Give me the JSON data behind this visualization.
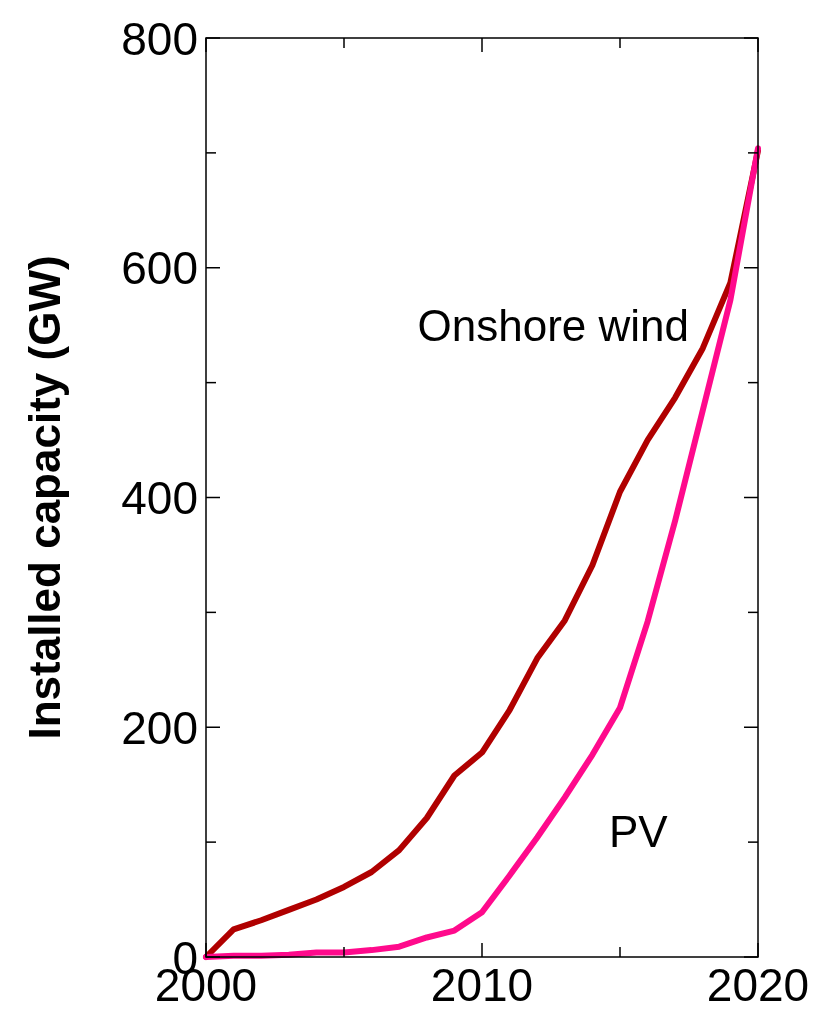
{
  "chart_data": {
    "type": "line",
    "ylabel": "Installed capacity (GW)",
    "x": [
      2000,
      2001,
      2002,
      2003,
      2004,
      2005,
      2006,
      2007,
      2008,
      2009,
      2010,
      2011,
      2012,
      2013,
      2014,
      2015,
      2016,
      2017,
      2018,
      2019,
      2020
    ],
    "series": [
      {
        "name": "Onshore wind",
        "color": "#b00000",
        "values": [
          0,
          24,
          32,
          41,
          50,
          61,
          74,
          93,
          121,
          158,
          178,
          215,
          260,
          293,
          341,
          405,
          450,
          487,
          530,
          587,
          702
        ]
      },
      {
        "name": "PV",
        "color": "#ff0a8c",
        "values": [
          0,
          1,
          1,
          2,
          4,
          4,
          6,
          9,
          17,
          23,
          39,
          71,
          104,
          139,
          176,
          217,
          292,
          380,
          476,
          572,
          704
        ]
      }
    ],
    "xlim": [
      2000,
      2020
    ],
    "xticks": [
      2000,
      {
        "value": 2005,
        "label": null
      },
      2010,
      {
        "value": 2015,
        "label": null
      },
      2020
    ],
    "ylim": [
      0,
      800
    ],
    "yticks": [
      0,
      {
        "value": 100,
        "label": null
      },
      200,
      {
        "value": 300,
        "label": null
      },
      400,
      {
        "value": 500,
        "label": null
      },
      600,
      {
        "value": 700,
        "label": null
      },
      800
    ],
    "grid": false
  }
}
